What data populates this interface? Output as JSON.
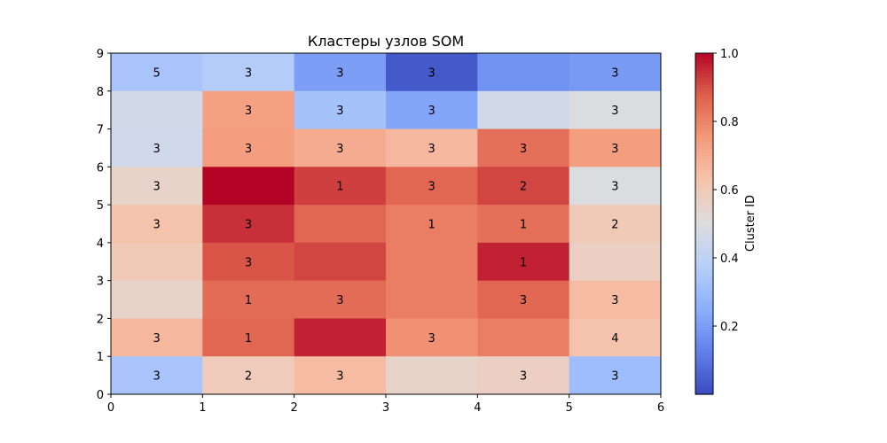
{
  "chart_data": {
    "type": "heatmap",
    "title": "Кластеры узлов SOM",
    "x_ticks": [
      "0",
      "1",
      "2",
      "3",
      "4",
      "5",
      "6"
    ],
    "y_ticks": [
      "0",
      "1",
      "2",
      "3",
      "4",
      "5",
      "6",
      "7",
      "8",
      "9"
    ],
    "xlim": [
      0,
      6
    ],
    "ylim": [
      0,
      9
    ],
    "colorbar": {
      "label": "Cluster ID",
      "ticks": [
        "0.2",
        "0.4",
        "0.6",
        "0.8",
        "1.0"
      ],
      "tick_values": [
        0.2,
        0.4,
        0.6,
        0.8,
        1.0
      ],
      "range": [
        0.0,
        1.0
      ],
      "colormap": "coolwarm"
    },
    "grid_rows_top_to_bottom": [
      [
        0.33,
        0.36,
        0.2,
        0.03,
        0.17,
        0.19
      ],
      [
        0.46,
        0.73,
        0.32,
        0.22,
        0.46,
        0.49
      ],
      [
        0.45,
        0.74,
        0.7,
        0.66,
        0.84,
        0.74
      ],
      [
        0.55,
        1.0,
        0.92,
        0.86,
        0.91,
        0.49
      ],
      [
        0.63,
        0.94,
        0.86,
        0.81,
        0.84,
        0.6
      ],
      [
        0.6,
        0.89,
        0.91,
        0.81,
        0.96,
        0.57
      ],
      [
        0.55,
        0.85,
        0.85,
        0.81,
        0.86,
        0.65
      ],
      [
        0.66,
        0.86,
        0.96,
        0.77,
        0.81,
        0.63
      ],
      [
        0.33,
        0.59,
        0.65,
        0.55,
        0.57,
        0.3
      ]
    ],
    "cell_labels_top_to_bottom": [
      [
        "5",
        "3",
        "3",
        "3",
        "",
        "3"
      ],
      [
        "",
        "3",
        "3",
        "3",
        "",
        "3"
      ],
      [
        "3",
        "3",
        "3",
        "3",
        "3",
        "3"
      ],
      [
        "3",
        "",
        "1",
        "3",
        "2",
        "3"
      ],
      [
        "3",
        "3",
        "",
        "1",
        "1",
        "2"
      ],
      [
        "",
        "3",
        "",
        "",
        "1",
        ""
      ],
      [
        "",
        "1",
        "3",
        "",
        "3",
        "3"
      ],
      [
        "3",
        "1",
        "",
        "3",
        "",
        "4"
      ],
      [
        "3",
        "2",
        "3",
        "",
        "3",
        "3"
      ]
    ]
  }
}
